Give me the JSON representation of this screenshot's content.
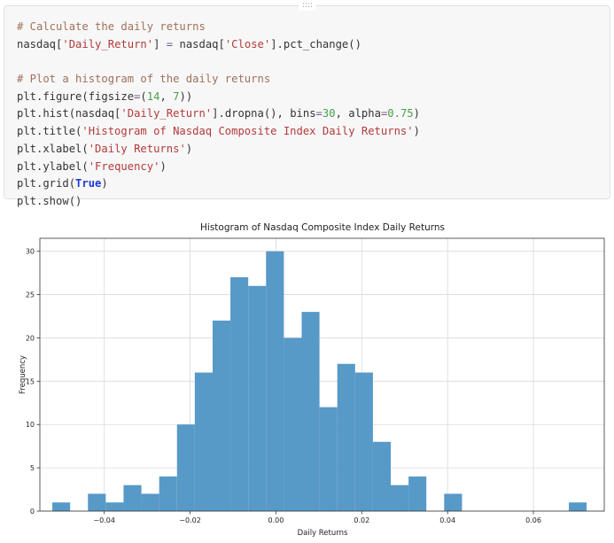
{
  "cell": {
    "drag_handle": "::::",
    "code_lines": [
      [
        {
          "t": "# Calculate the daily returns",
          "c": "cm"
        }
      ],
      [
        {
          "t": "nasdaq[",
          "c": ""
        },
        {
          "t": "'Daily_Return'",
          "c": "str"
        },
        {
          "t": "] ",
          "c": ""
        },
        {
          "t": "=",
          "c": "op"
        },
        {
          "t": " nasdaq[",
          "c": ""
        },
        {
          "t": "'Close'",
          "c": "str"
        },
        {
          "t": "].pct_change()",
          "c": ""
        }
      ],
      [
        {
          "t": "",
          "c": ""
        }
      ],
      [
        {
          "t": "# Plot a histogram of the daily returns",
          "c": "cm"
        }
      ],
      [
        {
          "t": "plt.figure(figsize",
          "c": ""
        },
        {
          "t": "=",
          "c": "op"
        },
        {
          "t": "(",
          "c": ""
        },
        {
          "t": "14",
          "c": "num"
        },
        {
          "t": ", ",
          "c": ""
        },
        {
          "t": "7",
          "c": "num"
        },
        {
          "t": "))",
          "c": ""
        }
      ],
      [
        {
          "t": "plt.hist(nasdaq[",
          "c": ""
        },
        {
          "t": "'Daily_Return'",
          "c": "str"
        },
        {
          "t": "].dropna(), bins",
          "c": ""
        },
        {
          "t": "=",
          "c": "op"
        },
        {
          "t": "30",
          "c": "num"
        },
        {
          "t": ", alpha",
          "c": ""
        },
        {
          "t": "=",
          "c": "op"
        },
        {
          "t": "0.75",
          "c": "num"
        },
        {
          "t": ")",
          "c": ""
        }
      ],
      [
        {
          "t": "plt.title(",
          "c": ""
        },
        {
          "t": "'Histogram of Nasdaq Composite Index Daily Returns'",
          "c": "str"
        },
        {
          "t": ")",
          "c": ""
        }
      ],
      [
        {
          "t": "plt.xlabel(",
          "c": ""
        },
        {
          "t": "'Daily Returns'",
          "c": "str"
        },
        {
          "t": ")",
          "c": ""
        }
      ],
      [
        {
          "t": "plt.ylabel(",
          "c": ""
        },
        {
          "t": "'Frequency'",
          "c": "str"
        },
        {
          "t": ")",
          "c": ""
        }
      ],
      [
        {
          "t": "plt.grid(",
          "c": ""
        },
        {
          "t": "True",
          "c": "kw"
        },
        {
          "t": ")",
          "c": ""
        }
      ],
      [
        {
          "t": "plt.show()",
          "c": ""
        }
      ]
    ]
  },
  "colors": {
    "bar": "#5799c7",
    "grid": "#d9d9d9",
    "axis": "#333333"
  },
  "chart_data": {
    "type": "bar",
    "title": "Histogram of Nasdaq Composite Index Daily Returns",
    "xlabel": "Daily Returns",
    "ylabel": "Frequency",
    "xlim": [
      -0.055,
      0.0765
    ],
    "ylim": [
      0,
      31.5
    ],
    "grid": true,
    "x_ticks": [
      -0.04,
      -0.02,
      0.0,
      0.02,
      0.04,
      0.06
    ],
    "x_tick_labels": [
      "−0.04",
      "−0.02",
      "0.00",
      "0.02",
      "0.04",
      "0.06"
    ],
    "y_ticks": [
      0,
      5,
      10,
      15,
      20,
      25,
      30
    ],
    "y_tick_labels": [
      "0",
      "5",
      "10",
      "15",
      "20",
      "25",
      "30"
    ],
    "bin_start": -0.0521,
    "bin_width": 0.00415,
    "values": [
      1,
      0,
      2,
      1,
      3,
      2,
      4,
      10,
      16,
      22,
      27,
      26,
      30,
      20,
      23,
      12,
      17,
      16,
      8,
      3,
      4,
      0,
      2,
      0,
      0,
      0,
      0,
      0,
      0,
      1
    ]
  }
}
